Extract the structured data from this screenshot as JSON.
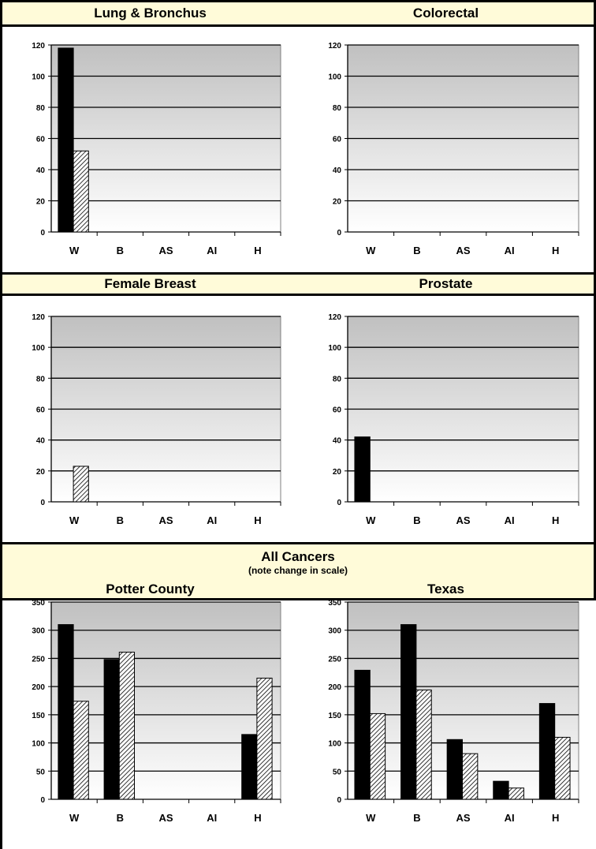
{
  "panels": {
    "lung": "Lung & Bronchus",
    "colorectal": "Colorectal",
    "breast": "Female Breast",
    "prostate": "Prostate",
    "all_cancers": "All Cancers",
    "all_cancers_note": "(note change in scale)",
    "potter": "Potter County",
    "texas": "Texas"
  },
  "colors": {
    "header_band": "#fffbd9",
    "bar_solid": "#000000",
    "plot_top": "#c0c0c0",
    "plot_bottom": "#ffffff"
  },
  "chart_data": [
    {
      "id": "lung",
      "type": "bar",
      "categories": [
        "W",
        "B",
        "AS",
        "AI",
        "H"
      ],
      "ylim": [
        0,
        120
      ],
      "yticks": [
        0,
        20,
        40,
        60,
        80,
        100,
        120
      ],
      "grid": true,
      "series": [
        {
          "style": "solid",
          "values": [
            118,
            0,
            0,
            0,
            0
          ]
        },
        {
          "style": "hatched",
          "values": [
            52,
            0,
            0,
            0,
            0
          ]
        }
      ]
    },
    {
      "id": "colorectal",
      "type": "bar",
      "categories": [
        "W",
        "B",
        "AS",
        "AI",
        "H"
      ],
      "ylim": [
        0,
        120
      ],
      "yticks": [
        0,
        20,
        40,
        60,
        80,
        100,
        120
      ],
      "grid": true,
      "series": [
        {
          "style": "solid",
          "values": [
            0,
            0,
            0,
            0,
            0
          ]
        },
        {
          "style": "hatched",
          "values": [
            0,
            0,
            0,
            0,
            0
          ]
        }
      ]
    },
    {
      "id": "breast",
      "type": "bar",
      "categories": [
        "W",
        "B",
        "AS",
        "AI",
        "H"
      ],
      "ylim": [
        0,
        120
      ],
      "yticks": [
        0,
        20,
        40,
        60,
        80,
        100,
        120
      ],
      "grid": true,
      "series": [
        {
          "style": "solid",
          "values": [
            0,
            0,
            0,
            0,
            0
          ]
        },
        {
          "style": "hatched",
          "values": [
            23,
            0,
            0,
            0,
            0
          ]
        }
      ]
    },
    {
      "id": "prostate",
      "type": "bar",
      "categories": [
        "W",
        "B",
        "AS",
        "AI",
        "H"
      ],
      "ylim": [
        0,
        120
      ],
      "yticks": [
        0,
        20,
        40,
        60,
        80,
        100,
        120
      ],
      "grid": true,
      "series": [
        {
          "style": "solid",
          "values": [
            42,
            0,
            0,
            0,
            0
          ]
        },
        {
          "style": "hatched",
          "values": [
            0,
            0,
            0,
            0,
            0
          ]
        }
      ]
    },
    {
      "id": "potter",
      "type": "bar",
      "categories": [
        "W",
        "B",
        "AS",
        "AI",
        "H"
      ],
      "ylim": [
        0,
        350
      ],
      "yticks": [
        0,
        50,
        100,
        150,
        200,
        250,
        300,
        350
      ],
      "grid": true,
      "series": [
        {
          "style": "solid",
          "values": [
            310,
            248,
            0,
            0,
            115
          ]
        },
        {
          "style": "hatched",
          "values": [
            174,
            261,
            0,
            0,
            215
          ]
        }
      ]
    },
    {
      "id": "texas",
      "type": "bar",
      "categories": [
        "W",
        "B",
        "AS",
        "AI",
        "H"
      ],
      "ylim": [
        0,
        350
      ],
      "yticks": [
        0,
        50,
        100,
        150,
        200,
        250,
        300,
        350
      ],
      "grid": true,
      "series": [
        {
          "style": "solid",
          "values": [
            229,
            310,
            106,
            32,
            170
          ]
        },
        {
          "style": "hatched",
          "values": [
            152,
            194,
            81,
            20,
            110
          ]
        }
      ]
    }
  ]
}
